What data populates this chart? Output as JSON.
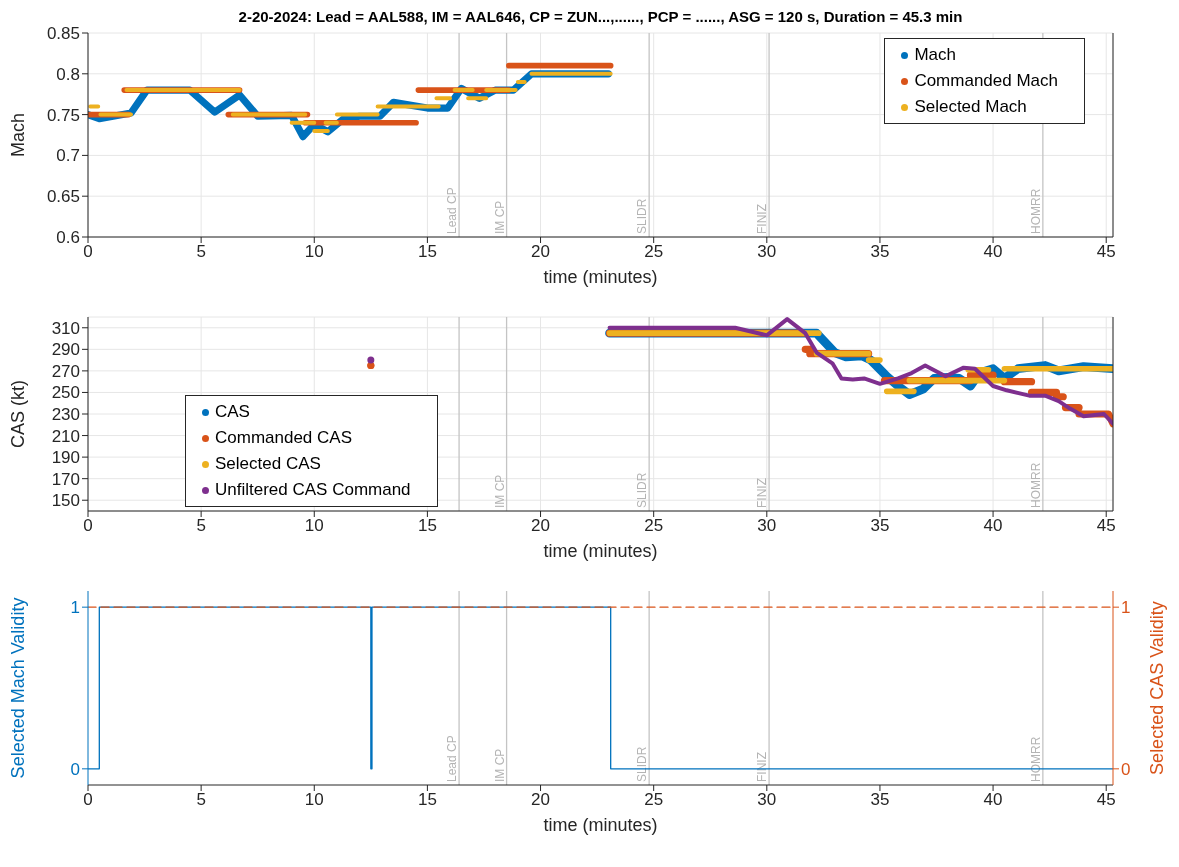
{
  "chart_data": [
    {
      "type": "line",
      "title": "2-20-2024: Lead = AAL588, IM = AAL646, CP = ZUN...,......, PCP = ......, ASG = 120 s, Duration = 45.3 min",
      "xlabel": "time (minutes)",
      "ylabel": "Mach",
      "xlim": [
        0,
        45.3
      ],
      "xticks": [
        0,
        5,
        10,
        15,
        20,
        25,
        30,
        35,
        40,
        45
      ],
      "ylim": [
        0.6,
        0.85
      ],
      "yticks": [
        0.6,
        0.65,
        0.7,
        0.75,
        0.8,
        0.85
      ],
      "grid": true,
      "legend": "top right",
      "ref_lines": [
        {
          "axis": "x",
          "value": 16.4,
          "label": "Lead CP"
        },
        {
          "axis": "x",
          "value": 18.5,
          "label": "IM CP"
        },
        {
          "axis": "x",
          "value": 24.8,
          "label": "SLIDR"
        },
        {
          "axis": "x",
          "value": 30.1,
          "label": "FINIZ"
        },
        {
          "axis": "x",
          "value": 42.2,
          "label": "HOMRR"
        }
      ],
      "series": [
        {
          "name": "Mach",
          "color": "#0072bd",
          "x": [
            0,
            0.5,
            1.9,
            2.6,
            4.5,
            5.6,
            6.7,
            7.5,
            9.0,
            9.5,
            10.0,
            10.6,
            11.3,
            12.0,
            12.9,
            13.5,
            15.0,
            15.9,
            16.5,
            17.3,
            18.0,
            18.8,
            19.6,
            23.0
          ],
          "values": [
            0.75,
            0.745,
            0.752,
            0.78,
            0.78,
            0.753,
            0.774,
            0.748,
            0.749,
            0.723,
            0.738,
            0.729,
            0.745,
            0.748,
            0.748,
            0.765,
            0.758,
            0.758,
            0.782,
            0.77,
            0.78,
            0.78,
            0.8,
            0.8
          ]
        },
        {
          "name": "Commanded Mach",
          "color": "#d95319",
          "x": [
            0,
            1.8,
            null,
            1.6,
            6.7,
            null,
            6.2,
            9.7,
            null,
            9.6,
            14.5,
            null,
            14.6,
            18.6,
            null,
            18.6,
            23.1
          ],
          "values": [
            0.75,
            0.75,
            null,
            0.78,
            0.78,
            null,
            0.75,
            0.75,
            null,
            0.74,
            0.74,
            null,
            0.78,
            0.78,
            null,
            0.81,
            0.81
          ]
        },
        {
          "name": "Selected Mach",
          "color": "#edb120",
          "x": [
            0.1,
            0.45,
            null,
            0.55,
            1.9,
            null,
            1.7,
            6.7,
            null,
            6.4,
            9.6,
            null,
            9.0,
            10.0,
            null,
            10.0,
            10.6,
            null,
            10.5,
            11.0,
            null,
            11.0,
            12.8,
            null,
            12.8,
            15.5,
            null,
            15.4,
            16.0,
            null,
            16.2,
            17.0,
            null,
            16.8,
            17.6,
            null,
            17.6,
            18.9,
            null,
            19.0,
            19.3,
            null,
            19.6,
            23.1
          ],
          "values": [
            0.76,
            0.76,
            null,
            0.75,
            0.75,
            null,
            0.78,
            0.78,
            null,
            0.75,
            0.75,
            null,
            0.74,
            0.74,
            null,
            0.73,
            0.73,
            null,
            0.74,
            0.74,
            null,
            0.75,
            0.75,
            null,
            0.76,
            0.76,
            null,
            0.77,
            0.77,
            null,
            0.78,
            0.78,
            null,
            0.77,
            0.77,
            null,
            0.78,
            0.78,
            null,
            0.79,
            0.79,
            null,
            0.8,
            0.8
          ]
        }
      ]
    },
    {
      "type": "line",
      "xlabel": "time (minutes)",
      "ylabel": "CAS (kt)",
      "xlim": [
        0,
        45.3
      ],
      "xticks": [
        0,
        5,
        10,
        15,
        20,
        25,
        30,
        35,
        40,
        45
      ],
      "ylim": [
        140,
        320
      ],
      "yticks": [
        150,
        170,
        190,
        210,
        230,
        250,
        270,
        290,
        310
      ],
      "grid": true,
      "legend": "bottom left",
      "ref_lines": [
        {
          "axis": "x",
          "value": 16.4,
          "label": null
        },
        {
          "axis": "x",
          "value": 18.5,
          "label": "IM CP"
        },
        {
          "axis": "x",
          "value": 24.8,
          "label": "SLIDR"
        },
        {
          "axis": "x",
          "value": 30.1,
          "label": "FINIZ"
        },
        {
          "axis": "x",
          "value": 42.2,
          "label": "HOMRR"
        }
      ],
      "series": [
        {
          "name": "CAS",
          "color": "#0072bd",
          "x": [
            23.05,
            32.2,
            33.0,
            33.5,
            34.2,
            34.6,
            35.3,
            35.8,
            36.3,
            36.9,
            37.4,
            38.0,
            38.5,
            39.0,
            39.4,
            40.0,
            40.5,
            41.1,
            42.3,
            42.9,
            44.0,
            45.3
          ],
          "values": [
            305,
            305,
            287,
            283,
            284,
            280,
            265,
            256,
            248,
            253,
            263,
            264,
            263,
            256,
            268,
            272,
            263,
            272,
            275,
            270,
            274,
            272
          ]
        },
        {
          "name": "Commanded CAS",
          "color": "#d95319",
          "x": [
            12.5,
            null,
            23.05,
            31.6,
            null,
            31.7,
            31.9,
            null,
            31.9,
            34.5,
            null,
            35.2,
            39.0,
            null,
            39.0,
            40.0,
            null,
            40.5,
            41.7,
            null,
            41.7,
            42.8,
            null,
            42.8,
            43.1,
            null,
            43.2,
            43.8,
            null,
            43.8,
            45.1,
            45.3
          ],
          "values": [
            275,
            null,
            305,
            305,
            null,
            290,
            290,
            null,
            286,
            286,
            null,
            261,
            261,
            null,
            266,
            266,
            null,
            260,
            260,
            null,
            250,
            250,
            null,
            246,
            246,
            null,
            236,
            236,
            null,
            230,
            230,
            221
          ]
        },
        {
          "name": "Selected CAS",
          "color": "#edb120",
          "x": [
            23.05,
            32.3,
            null,
            32.2,
            34.5,
            null,
            34.5,
            35.0,
            null,
            35.3,
            36.5,
            null,
            36.3,
            40.5,
            null,
            38.9,
            39.8,
            null,
            40.5,
            45.3
          ],
          "values": [
            305,
            305,
            null,
            286,
            286,
            null,
            280,
            280,
            null,
            251,
            251,
            null,
            261,
            261,
            null,
            271,
            271,
            null,
            272,
            272
          ]
        },
        {
          "name": "Unfiltered CAS Command",
          "color": "#7e2f8e",
          "x": [
            12.5,
            null,
            23.05,
            28.6,
            30.0,
            30.9,
            31.7,
            32.2,
            32.9,
            33.3,
            33.8,
            34.3,
            35.0,
            35.8,
            36.4,
            37.0,
            37.9,
            38.7,
            39.2,
            40.0,
            40.6,
            41.6,
            42.3,
            42.9,
            43.4,
            44.0,
            44.9,
            45.3
          ],
          "values": [
            280,
            null,
            310,
            310,
            303,
            318,
            305,
            287,
            277,
            263,
            262,
            263,
            258,
            263,
            268,
            275,
            265,
            273,
            272,
            256,
            252,
            247,
            247,
            242,
            235,
            228,
            230,
            221
          ]
        }
      ]
    },
    {
      "type": "step",
      "xlabel": "time (minutes)",
      "ylabel": "Selected Mach Validity",
      "y2label": "Selected CAS Validity",
      "xlim": [
        0,
        45.3
      ],
      "xticks": [
        0,
        5,
        10,
        15,
        20,
        25,
        30,
        35,
        40,
        45
      ],
      "ylim": [
        -0.1,
        1.1
      ],
      "yticks": [
        0,
        1
      ],
      "y2lim": [
        -0.1,
        1.1
      ],
      "y2ticks": [
        0,
        1
      ],
      "grid": false,
      "ref_lines": [
        {
          "axis": "x",
          "value": 16.4,
          "label": "Lead CP"
        },
        {
          "axis": "x",
          "value": 18.5,
          "label": "IM CP"
        },
        {
          "axis": "x",
          "value": 24.8,
          "label": "SLIDR"
        },
        {
          "axis": "x",
          "value": 30.1,
          "label": "FINIZ"
        },
        {
          "axis": "x",
          "value": 42.2,
          "label": "HOMRR"
        }
      ],
      "series": [
        {
          "color": "#0072bd",
          "x": [
            0,
            0.5,
            12.5,
            12.55,
            23.1,
            45.3
          ],
          "values": [
            0,
            1,
            0,
            1,
            0,
            0
          ]
        },
        {
          "color": "#d95319",
          "axis": "y2",
          "line_style": "dashed",
          "x": [
            0,
            45.3
          ],
          "values": [
            1,
            1
          ]
        }
      ]
    }
  ]
}
